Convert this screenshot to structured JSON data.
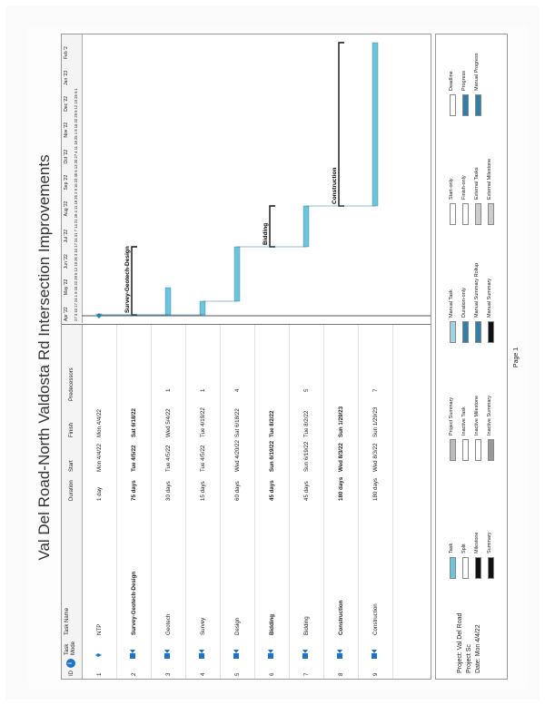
{
  "title": "Val Del Road-North Valdosta Rd Intersection Improvements",
  "columns": {
    "id": "ID",
    "info": "i",
    "mode": "Task Mode",
    "name": "Task Name",
    "duration": "Duration",
    "start": "Start",
    "finish": "Finish",
    "predecessors": "Predecessors"
  },
  "tasks": [
    {
      "id": "1",
      "name": "NTP",
      "duration": "1 day",
      "start": "Mon 4/4/22",
      "finish": "Mon 4/4/22",
      "predecessors": "",
      "summary": false
    },
    {
      "id": "2",
      "name": "Survey-Geotech-Design",
      "duration": "75 days",
      "start": "Tue 4/5/22",
      "finish": "Sat 6/18/22",
      "predecessors": "",
      "summary": true
    },
    {
      "id": "3",
      "name": "Geotech",
      "duration": "30 days",
      "start": "Tue 4/5/22",
      "finish": "Wed 5/4/22",
      "predecessors": "1",
      "summary": false
    },
    {
      "id": "4",
      "name": "Survey",
      "duration": "15 days",
      "start": "Tue 4/5/22",
      "finish": "Tue 4/19/22",
      "predecessors": "1",
      "summary": false
    },
    {
      "id": "5",
      "name": "Design",
      "duration": "60 days",
      "start": "Wed 4/20/22",
      "finish": "Sat 6/18/22",
      "predecessors": "4",
      "summary": false
    },
    {
      "id": "6",
      "name": "Bidding",
      "duration": "45 days",
      "start": "Sun 6/19/22",
      "finish": "Tue 8/2/22",
      "predecessors": "",
      "summary": true
    },
    {
      "id": "7",
      "name": "Bidding",
      "duration": "45 days",
      "start": "Sun 6/19/22",
      "finish": "Tue 8/2/22",
      "predecessors": "5",
      "summary": false
    },
    {
      "id": "8",
      "name": "Construction",
      "duration": "180 days",
      "start": "Wed 8/3/22",
      "finish": "Sun 1/29/23",
      "predecessors": "",
      "summary": true
    },
    {
      "id": "9",
      "name": "Construction",
      "duration": "180 days",
      "start": "Wed 8/3/22",
      "finish": "Sun 1/29/23",
      "predecessors": "7",
      "summary": false
    }
  ],
  "timeline": {
    "months": [
      "Apr '22",
      "May '22",
      "Jun '22",
      "Jul '22",
      "Aug '22",
      "Sep '22",
      "Oct '22",
      "Nov '22",
      "Dec '22",
      "Jan '23",
      "Feb '2"
    ],
    "weeks": "27 3 10 17 24 1 8 15 22 29 5 12 19 26 3 10 17 24 31 7 14 21 28 4 11 18 25 2 9 16 23 30 6 13 20 27 4 11 18 25 1 8 15 22 29 5 12 19 26 5 1",
    "start_date": "2022-03-27",
    "end_date": "2023-02-08",
    "bar_labels": {
      "2": "Survey-Geotech-Design",
      "6": "Bidding",
      "8": "Construction"
    }
  },
  "legend": {
    "project": "Project: Val Del Road Project Sc",
    "date": "Date: Mon 4/4/22",
    "items": [
      "Task",
      "Split",
      "Milestone",
      "Summary",
      "Project Summary",
      "Inactive Task",
      "Inactive Milestone",
      "Inactive Summary",
      "Manual Task",
      "Duration-only",
      "Manual Summary Rollup",
      "Manual Summary",
      "Start-only",
      "Finish-only",
      "External Tasks",
      "External Milestone",
      "Deadline",
      "Progress",
      "Manual Progress"
    ]
  },
  "page": "Page 1",
  "colors": {
    "bar": "#6ec3db",
    "bar_dark": "#2f7fa8",
    "summary": "#111111",
    "link": "#2f7fa8"
  }
}
